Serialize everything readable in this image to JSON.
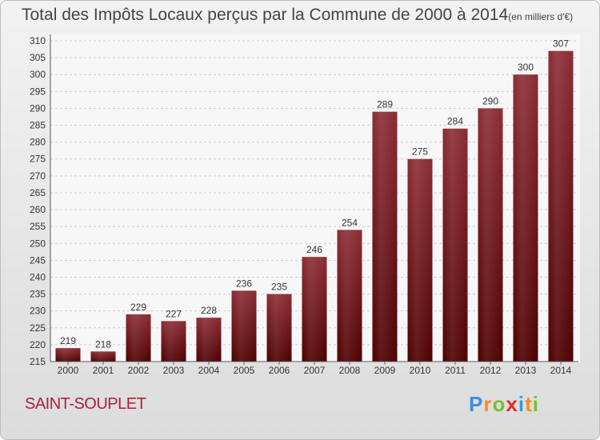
{
  "title": "Total des Impôts Locaux perçus par la Commune de 2000 à 2014",
  "unit": "(en milliers d'€)",
  "commune": "SAINT-SOUPLET",
  "logo": {
    "letters": [
      "P",
      "r",
      "o",
      "x",
      "i",
      "t",
      "i"
    ],
    "colors": [
      "#3c8fd9",
      "#ff8a1e",
      "#7cbf2e",
      "#e6262e",
      "#2f9bd6",
      "#ff8a1e",
      "#7cbf2e"
    ]
  },
  "chart_data": {
    "type": "bar",
    "title": "Total des Impôts Locaux perçus par la Commune de 2000 à 2014",
    "xlabel": "",
    "ylabel": "",
    "categories": [
      "2000",
      "2001",
      "2002",
      "2003",
      "2004",
      "2005",
      "2006",
      "2007",
      "2008",
      "2009",
      "2010",
      "2011",
      "2012",
      "2013",
      "2014"
    ],
    "values": [
      219,
      218,
      229,
      227,
      228,
      236,
      235,
      246,
      254,
      289,
      275,
      284,
      290,
      300,
      307
    ],
    "ylim": [
      215,
      310
    ],
    "yticks": [
      215,
      220,
      225,
      230,
      235,
      240,
      245,
      250,
      255,
      260,
      265,
      270,
      275,
      280,
      285,
      290,
      295,
      300,
      305,
      310
    ],
    "grid": true,
    "bar_color_top": "#8b2c34",
    "bar_color_bottom": "#4d0000"
  }
}
